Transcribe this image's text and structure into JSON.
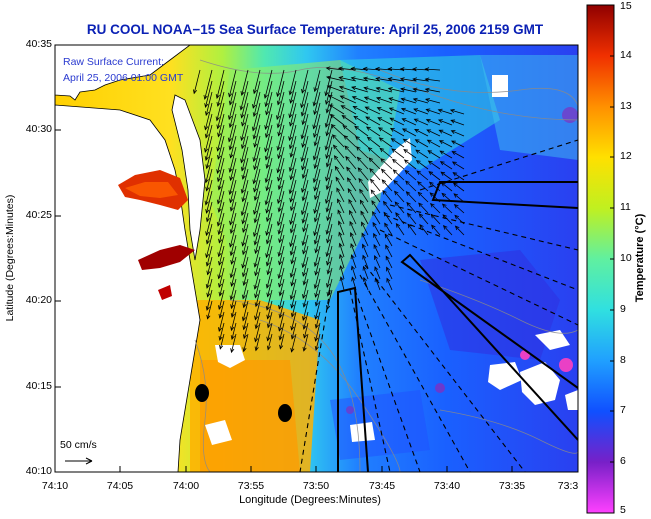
{
  "title": "RU COOL  NOAA−15  Sea Surface Temperature:  April 25, 2006 2159 GMT",
  "current_label": "Raw Surface Current:",
  "current_time": "April 25, 2006 01:00 GMT",
  "scale_label": "50 cm/s",
  "x_axis_label": "Longitude (Degrees:Minutes)",
  "y_axis_label": "Latitude (Degrees:Minutes)",
  "colorbar_label": "Temperature (°C)",
  "lon_ticks": [
    "74:10",
    "74:05",
    "74:00",
    "73:55",
    "73:50",
    "73:45",
    "73:40",
    "73:35",
    "73:3"
  ],
  "lat_ticks": [
    "40:35",
    "40:30",
    "40:25",
    "40:20",
    "40:15",
    "40:10"
  ],
  "colorbar_ticks": [
    "15",
    "14",
    "13",
    "12",
    "11",
    "10",
    "9",
    "8",
    "7",
    "6",
    "5"
  ],
  "colors": {
    "title": "#0b21b5",
    "land": "#ffffff",
    "cloud": "#ffffff",
    "coast": "#000000",
    "arrows": "#000000"
  },
  "colorbar_range": [
    5,
    15
  ],
  "colorbar_stops": [
    "#ff40ff",
    "#7820c8",
    "#1050ff",
    "#20a0ff",
    "#30e0e0",
    "#60f0a0",
    "#c0f020",
    "#ffe000",
    "#ff9000",
    "#f03000",
    "#900000"
  ]
}
